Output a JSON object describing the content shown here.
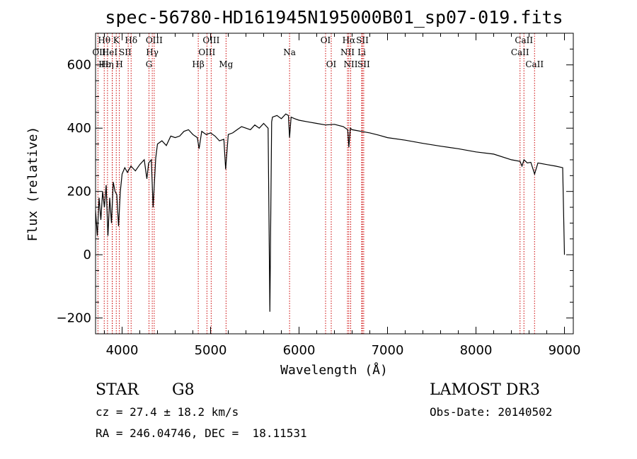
{
  "chart_data": {
    "type": "line",
    "title": "spec-56780-HD161945N195000B01_sp07-019.fits",
    "xlabel": "Wavelength (Å)",
    "ylabel": "Flux (relative)",
    "xlim": [
      3700,
      9100
    ],
    "ylim": [
      -250,
      700
    ],
    "x_ticks": [
      4000,
      5000,
      6000,
      7000,
      8000,
      9000
    ],
    "y_ticks": [
      -200,
      0,
      200,
      400,
      600
    ],
    "x_tick_labels": [
      "4000",
      "5000",
      "6000",
      "7000",
      "8000",
      "9000"
    ],
    "y_tick_labels": [
      "−200",
      "0",
      "200",
      "400",
      "600"
    ],
    "grid": false,
    "series": [
      {
        "x": [
          3700,
          3720,
          3740,
          3760,
          3780,
          3800,
          3820,
          3840,
          3860,
          3880,
          3900,
          3920,
          3940,
          3960,
          3980,
          4000,
          4030,
          4060,
          4100,
          4150,
          4200,
          4250,
          4280,
          4300,
          4330,
          4350,
          4380,
          4400,
          4450,
          4500,
          4550,
          4600,
          4650,
          4700,
          4750,
          4800,
          4850,
          4870,
          4900,
          4950,
          5000,
          5050,
          5100,
          5150,
          5170,
          5200,
          5250,
          5300,
          5350,
          5400,
          5450,
          5500,
          5550,
          5600,
          5650,
          5670,
          5690,
          5700,
          5750,
          5800,
          5850,
          5880,
          5893,
          5910,
          5950,
          6000,
          6100,
          6200,
          6300,
          6400,
          6500,
          6550,
          6563,
          6580,
          6600,
          6700,
          6800,
          6900,
          7000,
          7200,
          7400,
          7600,
          7800,
          8000,
          8200,
          8400,
          8498,
          8520,
          8542,
          8580,
          8620,
          8662,
          8700,
          8800,
          8900,
          8980,
          9000
        ],
        "y": [
          140,
          60,
          180,
          110,
          200,
          150,
          220,
          60,
          180,
          100,
          230,
          200,
          190,
          90,
          200,
          255,
          275,
          260,
          280,
          265,
          285,
          300,
          240,
          290,
          300,
          150,
          305,
          350,
          360,
          345,
          375,
          370,
          375,
          390,
          395,
          380,
          370,
          335,
          390,
          380,
          385,
          375,
          360,
          365,
          270,
          380,
          385,
          395,
          405,
          400,
          395,
          410,
          400,
          415,
          400,
          -180,
          420,
          435,
          440,
          430,
          445,
          440,
          370,
          435,
          430,
          425,
          420,
          415,
          410,
          412,
          405,
          395,
          340,
          400,
          395,
          390,
          385,
          378,
          370,
          362,
          352,
          343,
          335,
          325,
          318,
          300,
          295,
          280,
          300,
          290,
          292,
          255,
          290,
          285,
          280,
          275,
          0
        ]
      }
    ],
    "lines": [
      {
        "label": "Hθ",
        "x": 3798
      },
      {
        "label": "OII",
        "x": 3727
      },
      {
        "label": "Hη",
        "x": 3835
      },
      {
        "label": "Hε",
        "x": 3889
      },
      {
        "label": "K",
        "x": 3934
      },
      {
        "label": "HeI",
        "x": 3889
      },
      {
        "label": "H",
        "x": 3969
      },
      {
        "label": "Hδ",
        "x": 4102
      },
      {
        "label": "SII",
        "x": 4069
      },
      {
        "label": "OIII",
        "x": 4363
      },
      {
        "label": "Hγ",
        "x": 4341
      },
      {
        "label": "G",
        "x": 4304
      },
      {
        "label": "Hβ",
        "x": 4861
      },
      {
        "label": "OIII",
        "x": 4959
      },
      {
        "label": "OIII",
        "x": 5007
      },
      {
        "label": "Mg",
        "x": 5175
      },
      {
        "label": "Na",
        "x": 5893
      },
      {
        "label": "OI",
        "x": 6300
      },
      {
        "label": "OI",
        "x": 6364
      },
      {
        "label": "Hα",
        "x": 6563
      },
      {
        "label": "NII",
        "x": 6548
      },
      {
        "label": "NII",
        "x": 6584
      },
      {
        "label": "SII",
        "x": 6716
      },
      {
        "label": "Li",
        "x": 6708
      },
      {
        "label": "SII",
        "x": 6731
      },
      {
        "label": "CaII",
        "x": 8498
      },
      {
        "label": "CaII",
        "x": 8542
      },
      {
        "label": "CaII",
        "x": 8662
      }
    ],
    "line_labels": [
      {
        "text": "Hθ",
        "row": 1,
        "x": 3798
      },
      {
        "text": "OII",
        "row": 2,
        "x": 3740
      },
      {
        "text": "Hη",
        "row": 3,
        "x": 3835
      },
      {
        "text": "Hε",
        "row": 3,
        "x": 3800
      },
      {
        "text": "K",
        "row": 1,
        "x": 3934
      },
      {
        "text": "HeI",
        "row": 2,
        "x": 3860
      },
      {
        "text": "H",
        "row": 3,
        "x": 3969
      },
      {
        "text": "Hδ",
        "row": 1,
        "x": 4102
      },
      {
        "text": "SII",
        "row": 2,
        "x": 4035
      },
      {
        "text": "OIII",
        "row": 1,
        "x": 4363
      },
      {
        "text": "Hγ",
        "row": 2,
        "x": 4341
      },
      {
        "text": "G",
        "row": 3,
        "x": 4304
      },
      {
        "text": "OIII",
        "row": 1,
        "x": 5007
      },
      {
        "text": "OIII",
        "row": 2,
        "x": 4959
      },
      {
        "text": "Hβ",
        "row": 3,
        "x": 4861
      },
      {
        "text": "Mg",
        "row": 3,
        "x": 5175
      },
      {
        "text": "Na",
        "row": 2,
        "x": 5893
      },
      {
        "text": "OI",
        "row": 1,
        "x": 6300
      },
      {
        "text": "OI",
        "row": 3,
        "x": 6364
      },
      {
        "text": "Hα",
        "row": 1,
        "x": 6563
      },
      {
        "text": "SII",
        "row": 1,
        "x": 6716
      },
      {
        "text": "NII",
        "row": 2,
        "x": 6548
      },
      {
        "text": "Li",
        "row": 2,
        "x": 6708
      },
      {
        "text": "NII",
        "row": 3,
        "x": 6584
      },
      {
        "text": "SII",
        "row": 3,
        "x": 6731
      },
      {
        "text": "CaII",
        "row": 1,
        "x": 8542
      },
      {
        "text": "CaII",
        "row": 2,
        "x": 8498
      },
      {
        "text": "CaII",
        "row": 3,
        "x": 8662
      }
    ]
  },
  "footer": {
    "object_type": "STAR",
    "subclass": "G8",
    "survey": "LAMOST DR3",
    "cz": "cz = 27.4 ± 18.2 km/s",
    "obs_date": "Obs-Date: 20140502",
    "coords": "RA = 246.04746, DEC =  18.11531"
  },
  "colors": {
    "spectrum": "#000000",
    "line_markers": "#cc0000",
    "axes": "#000000"
  }
}
